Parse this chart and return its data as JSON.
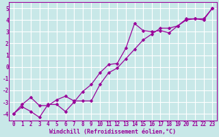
{
  "xlabel": "Windchill (Refroidissement éolien,°C)",
  "background_color": "#c8e8e8",
  "grid_color": "#ffffff",
  "line_color": "#990099",
  "xlim": [
    -0.5,
    23.5
  ],
  "ylim": [
    -4.6,
    5.5
  ],
  "xticks": [
    0,
    1,
    2,
    3,
    4,
    5,
    6,
    7,
    8,
    9,
    10,
    11,
    12,
    13,
    14,
    15,
    16,
    17,
    18,
    19,
    20,
    21,
    22,
    23
  ],
  "yticks": [
    -4,
    -3,
    -2,
    -1,
    0,
    1,
    2,
    3,
    4,
    5
  ],
  "line1_x": [
    0,
    1,
    2,
    3,
    4,
    5,
    6,
    7,
    8,
    9,
    10,
    11,
    12,
    13,
    14,
    15,
    16,
    17,
    18,
    19,
    20,
    21,
    22,
    23
  ],
  "line1_y": [
    -4.0,
    -3.4,
    -3.8,
    -4.3,
    -3.2,
    -3.2,
    -3.8,
    -3.0,
    -2.1,
    -1.5,
    -0.5,
    0.2,
    0.3,
    1.6,
    3.7,
    3.1,
    3.0,
    3.1,
    2.9,
    3.5,
    4.1,
    4.1,
    4.0,
    5.0
  ],
  "line2_x": [
    0,
    1,
    2,
    3,
    4,
    5,
    6,
    7,
    8,
    9,
    10,
    11,
    12,
    13,
    14,
    15,
    16,
    17,
    18,
    19,
    20,
    21,
    22,
    23
  ],
  "line2_y": [
    -4.0,
    -3.2,
    -2.6,
    -3.3,
    -3.3,
    -2.8,
    -2.5,
    -2.9,
    -2.9,
    -2.9,
    -1.5,
    -0.5,
    -0.1,
    0.7,
    1.5,
    2.3,
    2.8,
    3.3,
    3.3,
    3.5,
    4.0,
    4.1,
    4.1,
    5.0
  ],
  "tick_fontsize": 5.5,
  "xlabel_fontsize": 6.0,
  "marker_size": 2.5,
  "line_width": 0.9
}
